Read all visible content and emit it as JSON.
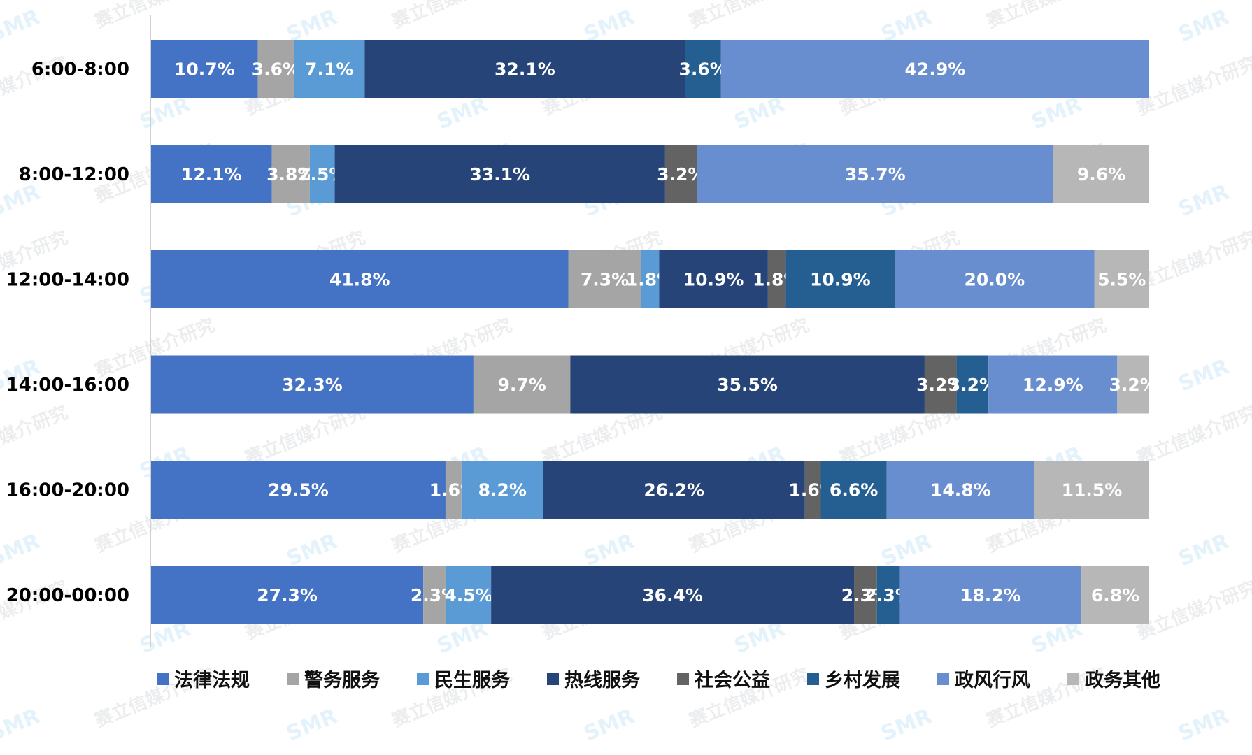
{
  "chart_data": {
    "type": "bar",
    "orientation": "horizontal",
    "stacked": true,
    "percent_stacked": true,
    "categories": [
      "6:00-8:00",
      "8:00-12:00",
      "12:00-14:00",
      "14:00-16:00",
      "16:00-20:00",
      "20:00-00:00"
    ],
    "series": [
      {
        "name": "法律法规",
        "color": "#4472c4",
        "values": [
          10.7,
          12.1,
          41.8,
          32.3,
          29.5,
          27.3
        ]
      },
      {
        "name": "警务服务",
        "color": "#a5a5a5",
        "values": [
          3.6,
          3.8,
          7.3,
          9.7,
          1.6,
          2.3
        ]
      },
      {
        "name": "民生服务",
        "color": "#5b9bd5",
        "values": [
          7.1,
          2.5,
          1.8,
          0,
          8.2,
          4.5
        ]
      },
      {
        "name": "热线服务",
        "color": "#264478",
        "values": [
          32.1,
          33.1,
          10.9,
          35.5,
          26.2,
          36.4
        ]
      },
      {
        "name": "社会公益",
        "color": "#636363",
        "values": [
          0,
          3.2,
          1.8,
          3.2,
          1.6,
          2.3
        ]
      },
      {
        "name": "乡村发展",
        "color": "#255e91",
        "values": [
          3.6,
          0,
          10.9,
          3.2,
          6.6,
          2.3
        ]
      },
      {
        "name": "政风行风",
        "color": "#698ed0",
        "values": [
          42.9,
          35.7,
          20.0,
          12.9,
          14.8,
          18.2
        ]
      },
      {
        "name": "政务其他",
        "color": "#b7b7b7",
        "values": [
          0,
          9.6,
          5.5,
          3.2,
          11.5,
          6.8
        ]
      }
    ],
    "data_labels": [
      [
        "10.7%",
        "3.6%",
        "7.1%",
        "32.1%",
        "",
        "3.6%",
        "42.9%",
        ""
      ],
      [
        "12.1%",
        "3.8%",
        "2.5%",
        "33.1%",
        "3.2%",
        "",
        "35.7%",
        "9.6%"
      ],
      [
        "41.8%",
        "7.3%",
        "1.8%",
        "10.9%",
        "1.8%",
        "10.9%",
        "20.0%",
        "5.5%"
      ],
      [
        "32.3%",
        "9.7%",
        "",
        "35.5%",
        "3.2%",
        "3.2%",
        "12.9%",
        "3.2%"
      ],
      [
        "29.5%",
        "1.6%",
        "8.2%",
        "26.2%",
        "1.6%",
        "6.6%",
        "14.8%",
        "11.5%"
      ],
      [
        "27.3%",
        "2.3%",
        "4.5%",
        "36.4%",
        "2.3%",
        "2.3%",
        "18.2%",
        "6.8%"
      ]
    ],
    "xlim": [
      0,
      100
    ],
    "legend_position": "bottom",
    "grid": false
  },
  "watermark": {
    "text": "赛立信媒介研究",
    "logo": "SMR"
  }
}
